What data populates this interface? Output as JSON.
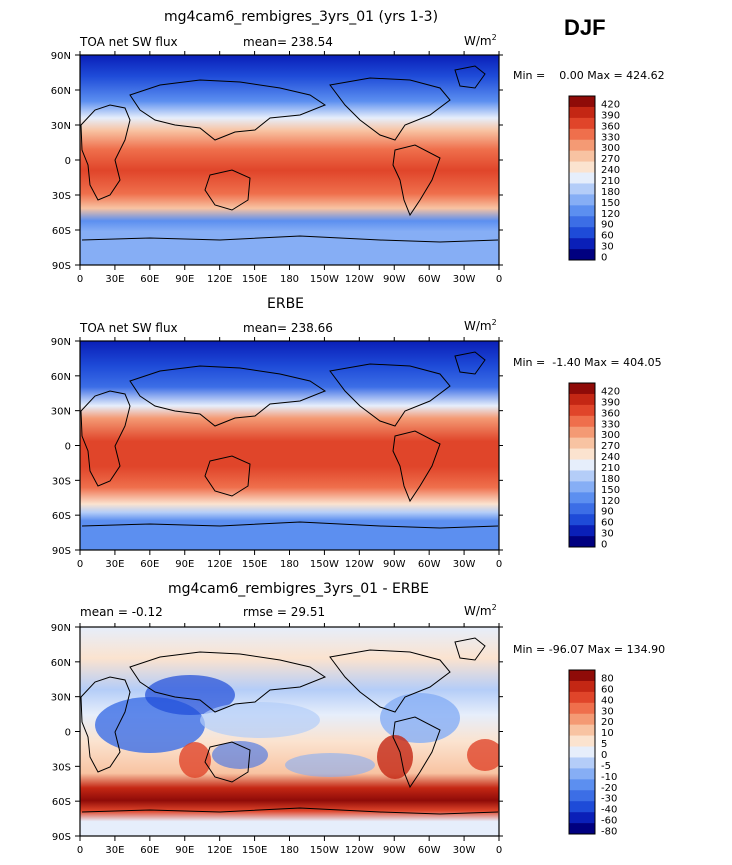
{
  "season": "DJF",
  "panels": [
    {
      "title": "mg4cam6_rembigres_3yrs_01 (yrs 1-3)",
      "left_label": "TOA net SW flux",
      "center_label": "mean= 238.54",
      "units": "W/m",
      "units_sup": "2",
      "minmax": "Min =    0.00 Max = 424.62",
      "colorbar_labels": [
        "420",
        "390",
        "360",
        "330",
        "300",
        "270",
        "240",
        "210",
        "180",
        "150",
        "120",
        "90",
        "60",
        "30",
        "0"
      ]
    },
    {
      "title": "ERBE",
      "left_label": "TOA net SW flux",
      "center_label": "mean= 238.66",
      "units": "W/m",
      "units_sup": "2",
      "minmax": "Min =  -1.40 Max = 404.05",
      "colorbar_labels": [
        "420",
        "390",
        "360",
        "330",
        "300",
        "270",
        "240",
        "210",
        "180",
        "150",
        "120",
        "90",
        "60",
        "30",
        "0"
      ]
    },
    {
      "title": "mg4cam6_rembigres_3yrs_01 - ERBE",
      "left_label": "mean =   -0.12",
      "center_label": "rmse =   29.51",
      "units": "W/m",
      "units_sup": "2",
      "minmax": "Min = -96.07 Max = 134.90",
      "colorbar_labels": [
        "80",
        "60",
        "40",
        "30",
        "20",
        "10",
        "5",
        "0",
        "-5",
        "-10",
        "-20",
        "-30",
        "-40",
        "-60",
        "-80"
      ]
    }
  ],
  "chart_data": [
    {
      "type": "heatmap",
      "title": "mg4cam6_rembigres_3yrs_01 (yrs 1-3)",
      "variable": "TOA net SW flux",
      "units": "W/m2",
      "mean": 238.54,
      "min": 0.0,
      "max": 424.62,
      "x_ticks": [
        "0",
        "30E",
        "60E",
        "90E",
        "120E",
        "150E",
        "180",
        "150W",
        "120W",
        "90W",
        "60W",
        "30W",
        "0"
      ],
      "y_ticks": [
        "90N",
        "60N",
        "30N",
        "0",
        "30S",
        "60S",
        "90S"
      ],
      "levels": [
        0,
        30,
        60,
        90,
        120,
        150,
        180,
        210,
        240,
        270,
        300,
        330,
        360,
        390,
        420
      ]
    },
    {
      "type": "heatmap",
      "title": "ERBE",
      "variable": "TOA net SW flux",
      "units": "W/m2",
      "mean": 238.66,
      "min": -1.4,
      "max": 404.05,
      "x_ticks": [
        "0",
        "30E",
        "60E",
        "90E",
        "120E",
        "150E",
        "180",
        "150W",
        "120W",
        "90W",
        "60W",
        "30W",
        "0"
      ],
      "y_ticks": [
        "90N",
        "60N",
        "30N",
        "0",
        "30S",
        "60S",
        "90S"
      ],
      "levels": [
        0,
        30,
        60,
        90,
        120,
        150,
        180,
        210,
        240,
        270,
        300,
        330,
        360,
        390,
        420
      ]
    },
    {
      "type": "heatmap",
      "title": "mg4cam6_rembigres_3yrs_01 - ERBE",
      "units": "W/m2",
      "mean": -0.12,
      "rmse": 29.51,
      "min": -96.07,
      "max": 134.9,
      "x_ticks": [
        "0",
        "30E",
        "60E",
        "90E",
        "120E",
        "150E",
        "180",
        "150W",
        "120W",
        "90W",
        "60W",
        "30W",
        "0"
      ],
      "y_ticks": [
        "90N",
        "60N",
        "30N",
        "0",
        "30S",
        "60S",
        "90S"
      ],
      "levels": [
        -80,
        -60,
        -40,
        -30,
        -20,
        -10,
        -5,
        0,
        5,
        10,
        20,
        30,
        40,
        60,
        80
      ]
    }
  ],
  "colors": {
    "abs_scale": [
      "#000080",
      "#0a1fb8",
      "#1e4bd8",
      "#3c6ee6",
      "#5c8ff0",
      "#86aef5",
      "#b4cdf8",
      "#e6eefb",
      "#fbe3cf",
      "#f8c3a2",
      "#f49a74",
      "#ef6f4c",
      "#e0452a",
      "#c42714",
      "#8f0b08"
    ],
    "diff_scale": [
      "#000080",
      "#0a1fb8",
      "#1e4bd8",
      "#3c6ee6",
      "#5c8ff0",
      "#86aef5",
      "#b4cdf8",
      "#e6eefb",
      "#fbe3cf",
      "#f8c3a2",
      "#f49a74",
      "#ef6f4c",
      "#e0452a",
      "#c42714",
      "#8f0b08"
    ]
  }
}
